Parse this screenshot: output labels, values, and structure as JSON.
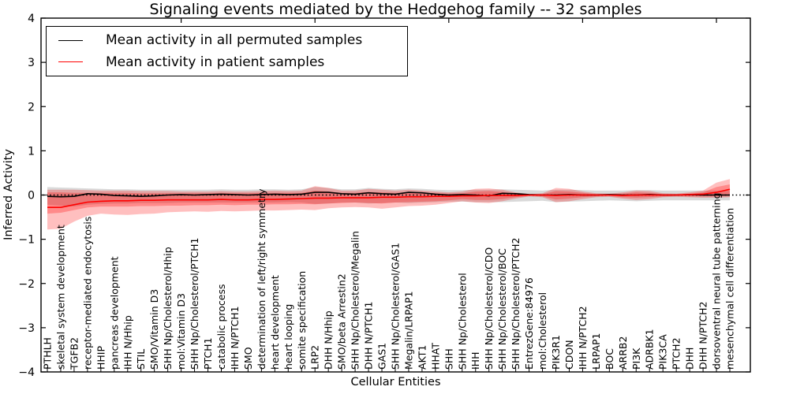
{
  "chart_data": {
    "type": "line",
    "title": "Signaling events mediated by the Hedgehog family -- 32 samples",
    "xlabel": "Cellular Entities",
    "ylabel": "Inferred Activity",
    "ylim": [
      -4,
      4
    ],
    "yticks": [
      4,
      3,
      2,
      1,
      0,
      -1,
      -2,
      -3,
      -4
    ],
    "grid": false,
    "legend_position": "upper left",
    "categories": [
      "PTHLH",
      "skeletal system development",
      "TGFB2",
      "receptor-mediated endocytosis",
      "HHIP",
      "pancreas development",
      "IHH N/Hhip",
      "STIL",
      "SMO/Vitamin D3",
      "SHH Np/Cholesterol/Hhip",
      "mol:Vitamin D3",
      "SHH Np/Cholesterol/PTCH1",
      "PTCH1",
      "catabolic process",
      "IHH N/PTCH1",
      "SMO",
      "determination of left/right symmetry",
      "heart development",
      "heart looping",
      "somite specification",
      "LRP2",
      "DHH N/Hhip",
      "SMO/beta Arrestin2",
      "SHH Np/Cholesterol/Megalin",
      "DHH N/PTCH1",
      "GAS1",
      "SHH Np/Cholesterol/GAS1",
      "Megalin/LRPAP1",
      "AKT1",
      "HHAT",
      "SHH",
      "SHH Np/Cholesterol",
      "IHH",
      "SHH Np/Cholesterol/CDO",
      "SHH Np/Cholesterol/BOC",
      "SHH Np/Cholesterol/PTCH2",
      "EntrezGene:84976",
      "mol:Cholesterol",
      "PIK3R1",
      "CDON",
      "IHH N/PTCH2",
      "LRPAP1",
      "BOC",
      "ARRB2",
      "PI3K",
      "ADRBK1",
      "PIK3CA",
      "PTCH2",
      "DHH",
      "DHH N/PTCH2",
      "dorsoventral neural tube patterning",
      "mesenchymal cell differentiation"
    ],
    "series": [
      {
        "name": "Mean activity in all permuted samples",
        "color": "#000000",
        "values": [
          -0.03,
          -0.04,
          -0.03,
          0.03,
          0.02,
          -0.01,
          -0.02,
          -0.03,
          -0.02,
          0.0,
          0.01,
          0.0,
          0.01,
          0.02,
          0.01,
          0.0,
          0.01,
          0.02,
          0.01,
          0.02,
          0.06,
          0.06,
          0.03,
          0.02,
          0.05,
          0.03,
          0.02,
          0.06,
          0.05,
          0.02,
          0.0,
          0.01,
          0.0,
          -0.02,
          0.04,
          0.03,
          0.01,
          0.0,
          0.0,
          0.01,
          0.0,
          0.0,
          0.01,
          0.0,
          0.0,
          0.01,
          0.0,
          0.0,
          0.01,
          0.0,
          0.0,
          0.0
        ]
      },
      {
        "name": "Mean activity in patient samples",
        "color": "#ff0000",
        "values": [
          -0.28,
          -0.28,
          -0.22,
          -0.16,
          -0.14,
          -0.13,
          -0.13,
          -0.12,
          -0.12,
          -0.11,
          -0.11,
          -0.11,
          -0.11,
          -0.1,
          -0.11,
          -0.11,
          -0.1,
          -0.1,
          -0.09,
          -0.08,
          -0.07,
          -0.07,
          -0.06,
          -0.06,
          -0.06,
          -0.05,
          -0.05,
          -0.04,
          -0.04,
          -0.03,
          -0.03,
          -0.02,
          -0.02,
          -0.01,
          -0.01,
          -0.01,
          0.0,
          0.0,
          -0.01,
          0.0,
          0.0,
          0.0,
          0.0,
          -0.01,
          0.0,
          0.0,
          0.0,
          0.0,
          0.01,
          0.02,
          0.06,
          0.13
        ]
      }
    ],
    "reference_line": {
      "name": "zero-baseline",
      "y": 0,
      "style": "dotted",
      "color": "#000000"
    },
    "bands": [
      {
        "name": "permuted-samples-range",
        "color": "#888888",
        "opacity": 0.32,
        "hi": [
          0.18,
          0.17,
          0.16,
          0.15,
          0.14,
          0.13,
          0.13,
          0.12,
          0.12,
          0.12,
          0.12,
          0.12,
          0.12,
          0.13,
          0.12,
          0.12,
          0.13,
          0.13,
          0.12,
          0.13,
          0.18,
          0.16,
          0.13,
          0.13,
          0.16,
          0.14,
          0.13,
          0.15,
          0.14,
          0.12,
          0.11,
          0.11,
          0.12,
          0.12,
          0.13,
          0.12,
          0.11,
          0.1,
          0.12,
          0.12,
          0.11,
          0.1,
          0.1,
          0.1,
          0.11,
          0.11,
          0.1,
          0.1,
          0.1,
          0.1,
          0.1,
          0.1
        ],
        "lo": [
          -0.22,
          -0.24,
          -0.26,
          -0.22,
          -0.2,
          -0.19,
          -0.19,
          -0.18,
          -0.18,
          -0.18,
          -0.17,
          -0.17,
          -0.17,
          -0.17,
          -0.17,
          -0.17,
          -0.17,
          -0.17,
          -0.16,
          -0.17,
          -0.2,
          -0.19,
          -0.17,
          -0.17,
          -0.19,
          -0.18,
          -0.17,
          -0.18,
          -0.17,
          -0.16,
          -0.15,
          -0.15,
          -0.16,
          -0.16,
          -0.16,
          -0.15,
          -0.14,
          -0.13,
          -0.16,
          -0.15,
          -0.14,
          -0.13,
          -0.12,
          -0.13,
          -0.14,
          -0.13,
          -0.12,
          -0.12,
          -0.12,
          -0.12,
          -0.12,
          -0.12
        ]
      },
      {
        "name": "patient-samples-range-outer",
        "color": "#ff0000",
        "opacity": 0.25,
        "hi": [
          0.12,
          0.12,
          0.12,
          0.11,
          0.1,
          0.1,
          0.1,
          0.09,
          0.09,
          0.09,
          0.08,
          0.08,
          0.08,
          0.09,
          0.08,
          0.08,
          0.09,
          0.1,
          0.09,
          0.1,
          0.2,
          0.16,
          0.1,
          0.1,
          0.14,
          0.12,
          0.1,
          0.12,
          0.1,
          0.08,
          0.06,
          0.08,
          0.14,
          0.15,
          0.12,
          0.06,
          0.02,
          0.04,
          0.16,
          0.14,
          0.08,
          0.04,
          0.03,
          0.06,
          0.1,
          0.09,
          0.04,
          0.03,
          0.06,
          0.1,
          0.28,
          0.36
        ],
        "lo": [
          -0.78,
          -0.76,
          -0.6,
          -0.47,
          -0.42,
          -0.44,
          -0.45,
          -0.43,
          -0.42,
          -0.39,
          -0.38,
          -0.37,
          -0.38,
          -0.36,
          -0.37,
          -0.36,
          -0.35,
          -0.35,
          -0.34,
          -0.33,
          -0.34,
          -0.3,
          -0.28,
          -0.27,
          -0.28,
          -0.31,
          -0.28,
          -0.25,
          -0.24,
          -0.22,
          -0.18,
          -0.14,
          -0.17,
          -0.18,
          -0.14,
          -0.08,
          -0.03,
          -0.05,
          -0.16,
          -0.14,
          -0.09,
          -0.05,
          -0.04,
          -0.08,
          -0.11,
          -0.09,
          -0.05,
          -0.04,
          -0.05,
          -0.06,
          -0.06,
          -0.05
        ]
      },
      {
        "name": "patient-samples-range-inner",
        "color": "#ff0000",
        "opacity": 0.28,
        "hi": [
          0.06,
          0.06,
          0.05,
          0.05,
          0.05,
          0.05,
          0.05,
          0.04,
          0.04,
          0.04,
          0.04,
          0.04,
          0.04,
          0.05,
          0.04,
          0.04,
          0.05,
          0.05,
          0.05,
          0.05,
          0.1,
          0.08,
          0.05,
          0.05,
          0.07,
          0.06,
          0.05,
          0.06,
          0.05,
          0.04,
          0.03,
          0.04,
          0.08,
          0.09,
          0.07,
          0.03,
          0.01,
          0.02,
          0.09,
          0.08,
          0.05,
          0.02,
          0.02,
          0.03,
          0.06,
          0.05,
          0.02,
          0.02,
          0.03,
          0.06,
          0.18,
          0.24
        ],
        "lo": [
          -0.42,
          -0.4,
          -0.34,
          -0.28,
          -0.26,
          -0.26,
          -0.26,
          -0.25,
          -0.25,
          -0.24,
          -0.24,
          -0.23,
          -0.23,
          -0.22,
          -0.23,
          -0.22,
          -0.22,
          -0.21,
          -0.21,
          -0.2,
          -0.21,
          -0.19,
          -0.18,
          -0.17,
          -0.18,
          -0.19,
          -0.17,
          -0.16,
          -0.15,
          -0.14,
          -0.12,
          -0.09,
          -0.11,
          -0.11,
          -0.09,
          -0.05,
          -0.02,
          -0.03,
          -0.1,
          -0.08,
          -0.05,
          -0.03,
          -0.02,
          -0.05,
          -0.06,
          -0.05,
          -0.03,
          -0.02,
          -0.03,
          -0.03,
          -0.03,
          -0.02
        ]
      }
    ]
  }
}
